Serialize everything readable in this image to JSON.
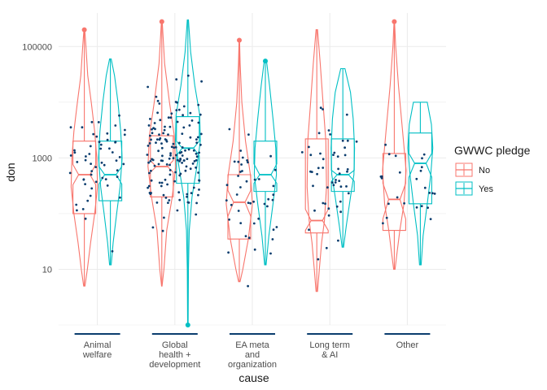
{
  "chart_data": {
    "type": "violin-boxplot-jitter",
    "title": "",
    "xlabel": "cause",
    "ylabel": "don",
    "y_scale": "log10",
    "ylim": [
      1,
      400000
    ],
    "y_ticks": [
      {
        "value": 10,
        "label": "10"
      },
      {
        "value": 1000,
        "label": "1000"
      },
      {
        "value": 100000,
        "label": "100000"
      }
    ],
    "categories": [
      [
        "Animal",
        "welfare"
      ],
      [
        "Global",
        "health +",
        "development"
      ],
      [
        "EA meta",
        "and",
        "organization"
      ],
      [
        "Long term",
        "& AI"
      ],
      [
        "Other"
      ]
    ],
    "legend": {
      "title": "GWWC pledge",
      "placement": "right",
      "entries": [
        {
          "label": "No",
          "color": "#F8766D"
        },
        {
          "label": "Yes",
          "color": "#00BFC4"
        }
      ]
    },
    "colors": {
      "No": "#F8766D",
      "Yes": "#00BFC4",
      "points": "#0b3d6e",
      "grid": "#ebebeb"
    },
    "series": [
      {
        "name": "No",
        "groups": [
          {
            "cat": 0,
            "min": 5,
            "q1": 100,
            "median": 500,
            "q3": 2000,
            "max": 200000,
            "notch": [
              330,
              760
            ],
            "outliers": [
              200000
            ],
            "density": [
              [
                5,
                0.05
              ],
              [
                10,
                0.22
              ],
              [
                30,
                0.45
              ],
              [
                100,
                0.75
              ],
              [
                300,
                0.95
              ],
              [
                1000,
                0.9
              ],
              [
                3000,
                0.75
              ],
              [
                10000,
                0.5
              ],
              [
                30000,
                0.25
              ],
              [
                100000,
                0.12
              ],
              [
                200000,
                0.03
              ]
            ]
          },
          {
            "cat": 1,
            "min": 5,
            "q1": 200,
            "median": 700,
            "q3": 2500,
            "max": 280000,
            "notch": [
              550,
              900
            ],
            "outliers": [
              280000
            ],
            "density": [
              [
                5,
                0.02
              ],
              [
                10,
                0.15
              ],
              [
                50,
                0.35
              ],
              [
                200,
                0.75
              ],
              [
                700,
                1.0
              ],
              [
                2500,
                0.9
              ],
              [
                10000,
                0.55
              ],
              [
                50000,
                0.2
              ],
              [
                280000,
                0.03
              ]
            ]
          },
          {
            "cat": 2,
            "min": 6,
            "q1": 35,
            "median": 160,
            "q3": 500,
            "max": 130000,
            "notch": [
              90,
              260
            ],
            "outliers": [
              130000
            ],
            "density": [
              [
                6,
                0.05
              ],
              [
                10,
                0.25
              ],
              [
                35,
                0.65
              ],
              [
                150,
                0.95
              ],
              [
                500,
                0.8
              ],
              [
                2000,
                0.45
              ],
              [
                10000,
                0.18
              ],
              [
                50000,
                0.06
              ],
              [
                130000,
                0.02
              ]
            ]
          },
          {
            "cat": 3,
            "min": 4,
            "q1": 45,
            "median": 75,
            "q3": 2200,
            "max": 200000,
            "notch": [
              50,
              120
            ],
            "outliers": [],
            "density": [
              [
                4,
                0.05
              ],
              [
                10,
                0.18
              ],
              [
                30,
                0.35
              ],
              [
                75,
                0.55
              ],
              [
                300,
                0.7
              ],
              [
                2000,
                0.65
              ],
              [
                10000,
                0.45
              ],
              [
                50000,
                0.25
              ],
              [
                200000,
                0.05
              ]
            ]
          },
          {
            "cat": 4,
            "min": 10,
            "q1": 50,
            "median": 180,
            "q3": 1200,
            "max": 280000,
            "notch": [
              80,
              350
            ],
            "outliers": [
              280000
            ],
            "density": [
              [
                10,
                0.05
              ],
              [
                20,
                0.2
              ],
              [
                50,
                0.4
              ],
              [
                150,
                0.7
              ],
              [
                600,
                0.85
              ],
              [
                3000,
                0.6
              ],
              [
                20000,
                0.3
              ],
              [
                100000,
                0.1
              ],
              [
                280000,
                0.02
              ]
            ]
          }
        ]
      },
      {
        "name": "Yes",
        "groups": [
          {
            "cat": 0,
            "min": 12,
            "q1": 170,
            "median": 500,
            "q3": 2000,
            "max": 60000,
            "notch": [
              340,
              700
            ],
            "outliers": [],
            "density": [
              [
                12,
                0.06
              ],
              [
                30,
                0.2
              ],
              [
                100,
                0.45
              ],
              [
                300,
                0.7
              ],
              [
                1000,
                0.85
              ],
              [
                3000,
                0.75
              ],
              [
                10000,
                0.55
              ],
              [
                30000,
                0.3
              ],
              [
                60000,
                0.06
              ]
            ]
          },
          {
            "cat": 1,
            "min": 1,
            "q1": 350,
            "median": 1500,
            "q3": 5500,
            "max": 300000,
            "notch": [
              1100,
              2000
            ],
            "outliers": [
              1
            ],
            "density": [
              [
                1,
                0.02
              ],
              [
                10,
                0.04
              ],
              [
                50,
                0.1
              ],
              [
                200,
                0.3
              ],
              [
                700,
                0.65
              ],
              [
                2000,
                0.9
              ],
              [
                6000,
                0.85
              ],
              [
                20000,
                0.5
              ],
              [
                80000,
                0.2
              ],
              [
                300000,
                0.04
              ]
            ]
          },
          {
            "cat": 2,
            "min": 12,
            "q1": 250,
            "median": 500,
            "q3": 2000,
            "max": 55000,
            "notch": [
              350,
              780
            ],
            "outliers": [
              55000
            ],
            "density": [
              [
                12,
                0.05
              ],
              [
                40,
                0.25
              ],
              [
                150,
                0.55
              ],
              [
                500,
                0.8
              ],
              [
                1500,
                0.75
              ],
              [
                5000,
                0.55
              ],
              [
                20000,
                0.3
              ],
              [
                55000,
                0.08
              ]
            ]
          },
          {
            "cat": 3,
            "min": 25,
            "q1": 250,
            "median": 500,
            "q3": 2200,
            "max": 40000,
            "notch": [
              380,
              600
            ],
            "outliers": [],
            "density": [
              [
                25,
                0.05
              ],
              [
                60,
                0.25
              ],
              [
                200,
                0.55
              ],
              [
                500,
                0.8
              ],
              [
                1500,
                0.85
              ],
              [
                5000,
                0.75
              ],
              [
                15000,
                0.55
              ],
              [
                40000,
                0.15
              ]
            ]
          },
          {
            "cat": 4,
            "min": 12,
            "q1": 150,
            "median": 800,
            "q3": 2800,
            "max": 10000,
            "notch": [
              450,
              1200
            ],
            "outliers": [],
            "density": [
              [
                12,
                0.06
              ],
              [
                40,
                0.2
              ],
              [
                150,
                0.5
              ],
              [
                500,
                0.75
              ],
              [
                1500,
                0.9
              ],
              [
                4000,
                0.8
              ],
              [
                10000,
                0.5
              ]
            ]
          }
        ]
      }
    ],
    "jitter_counts": [
      55,
      150,
      45,
      50,
      25
    ]
  }
}
